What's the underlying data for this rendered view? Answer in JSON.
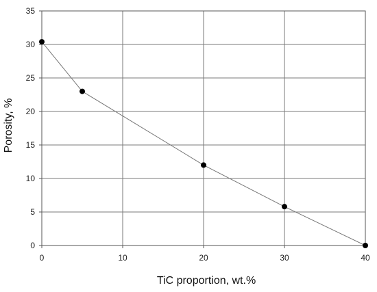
{
  "chart_data": {
    "type": "line",
    "title": "",
    "xlabel": "TiC proportion, wt.%",
    "ylabel": "Porosity, %",
    "xlim": [
      0,
      40
    ],
    "ylim": [
      0,
      35
    ],
    "x_ticks": [
      0,
      10,
      20,
      30,
      40
    ],
    "y_ticks": [
      0,
      5,
      10,
      15,
      20,
      25,
      30,
      35
    ],
    "grid": true,
    "legend": "none",
    "series": [
      {
        "x": [
          0,
          5,
          20,
          30,
          40
        ],
        "y": [
          30.4,
          23,
          12,
          5.8,
          0
        ],
        "color": "#777777",
        "marker_color": "#000000"
      }
    ]
  }
}
